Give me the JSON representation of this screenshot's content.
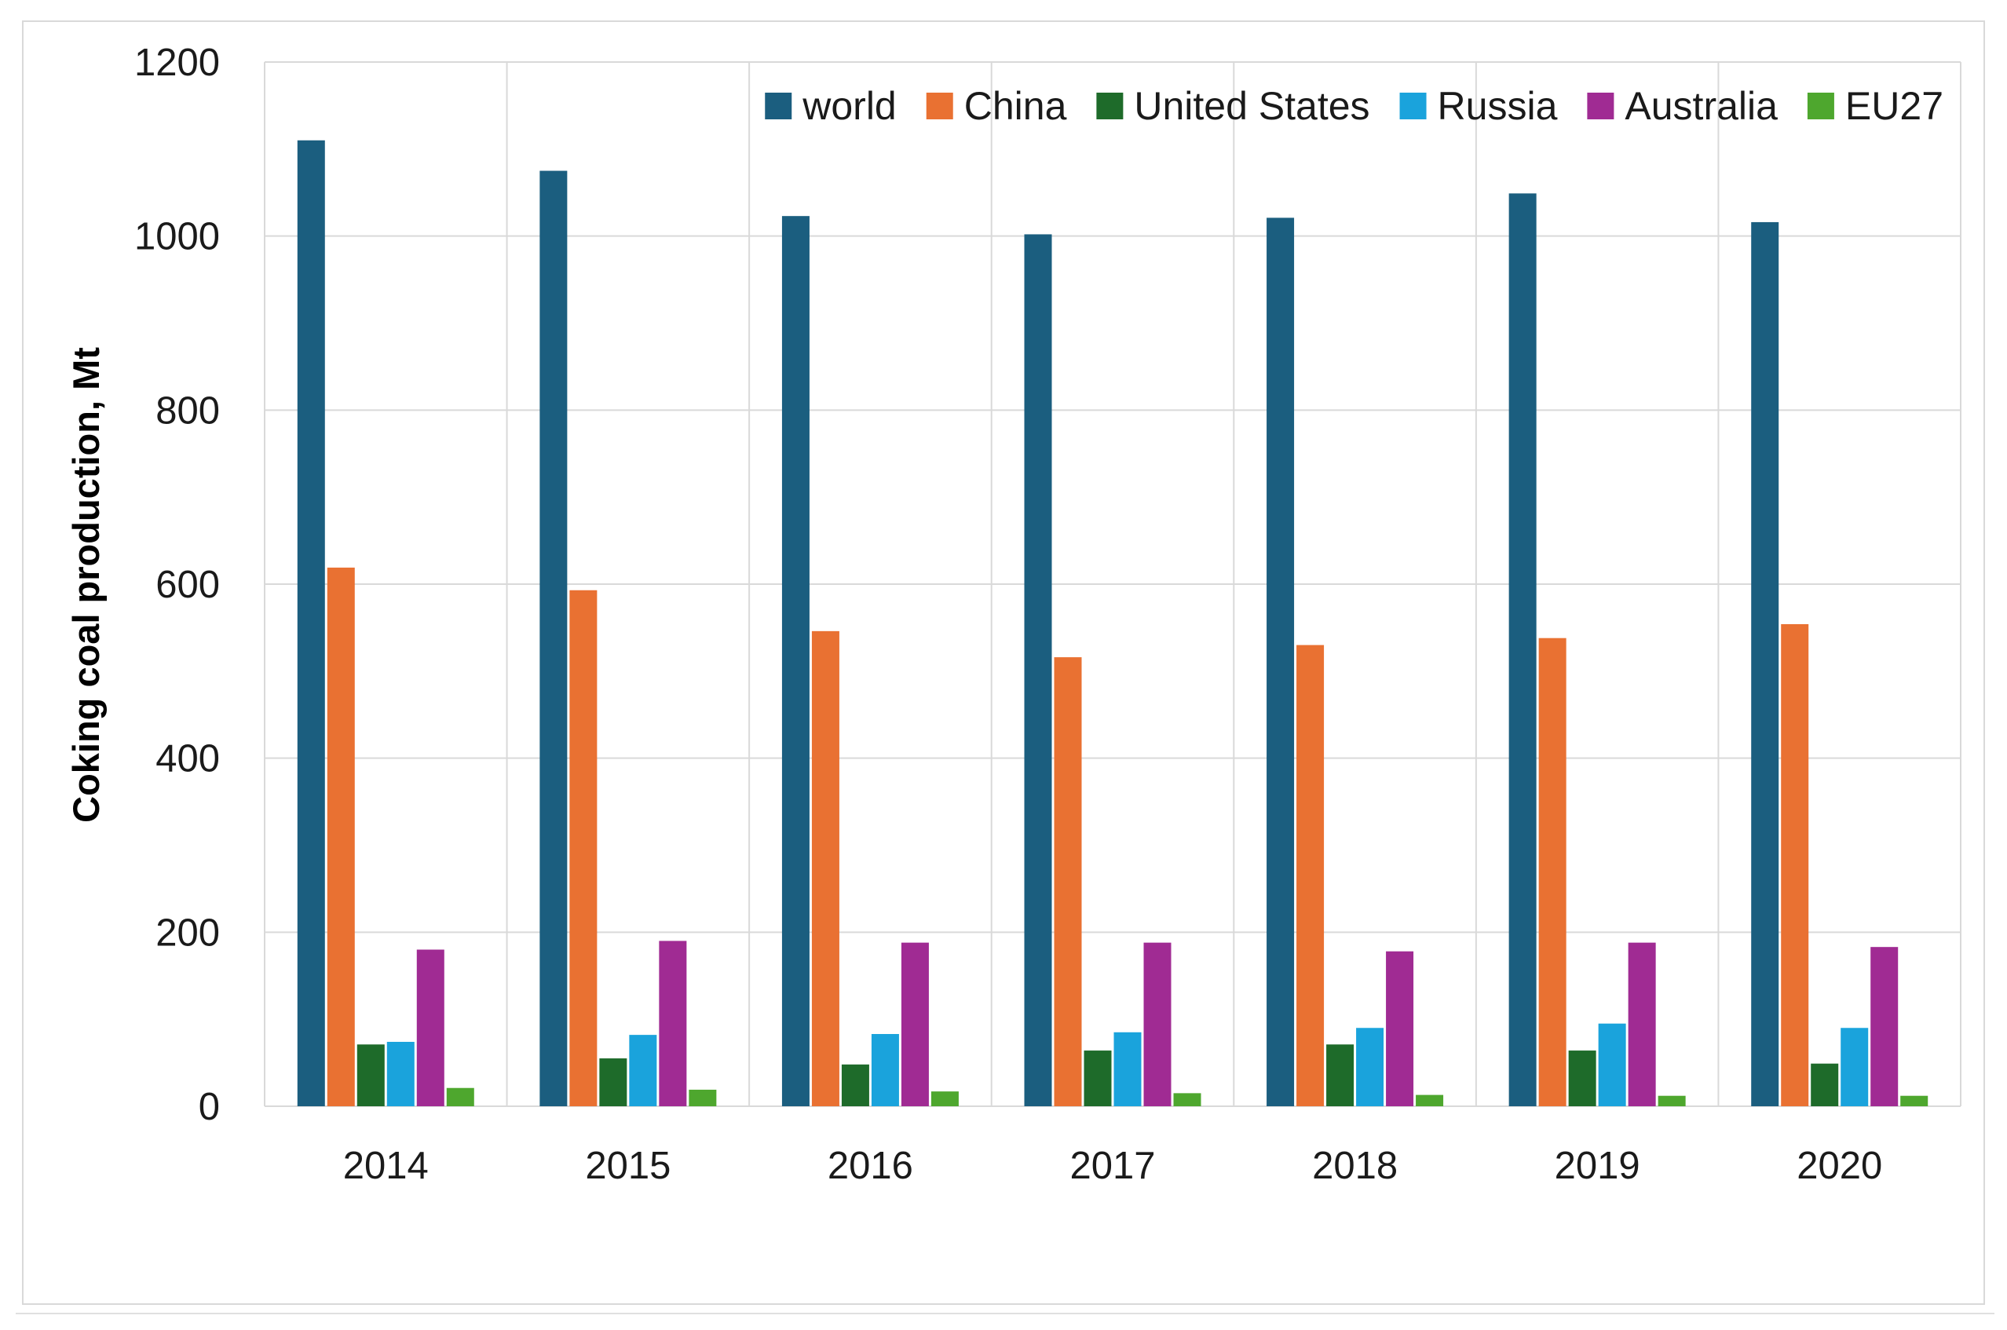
{
  "chart_data": {
    "type": "bar",
    "title": "",
    "xlabel": "",
    "ylabel": "Coking coal production, Mt",
    "ylim": [
      0,
      1200
    ],
    "yticks": [
      "0",
      "200",
      "400",
      "600",
      "800",
      "1000",
      "1200"
    ],
    "grid": true,
    "legend_position": "top-right",
    "categories": [
      "2014",
      "2015",
      "2016",
      "2017",
      "2018",
      "2019",
      "2020"
    ],
    "series": [
      {
        "name": "world",
        "color": "#1b5e7f",
        "values": [
          1110,
          1075,
          1023,
          1002,
          1021,
          1049,
          1016
        ]
      },
      {
        "name": "China",
        "color": "#e97132",
        "values": [
          619,
          593,
          546,
          516,
          530,
          538,
          554
        ]
      },
      {
        "name": "United States",
        "color": "#1e6b2a",
        "values": [
          71,
          55,
          48,
          64,
          71,
          64,
          49
        ]
      },
      {
        "name": "Russia",
        "color": "#1aa3dc",
        "values": [
          74,
          82,
          83,
          85,
          90,
          95,
          90
        ]
      },
      {
        "name": "Australia",
        "color": "#a02b93",
        "values": [
          180,
          190,
          188,
          188,
          178,
          188,
          183
        ]
      },
      {
        "name": "EU27",
        "color": "#4ea72e",
        "values": [
          21,
          19,
          17,
          15,
          13,
          12,
          12
        ]
      }
    ]
  }
}
